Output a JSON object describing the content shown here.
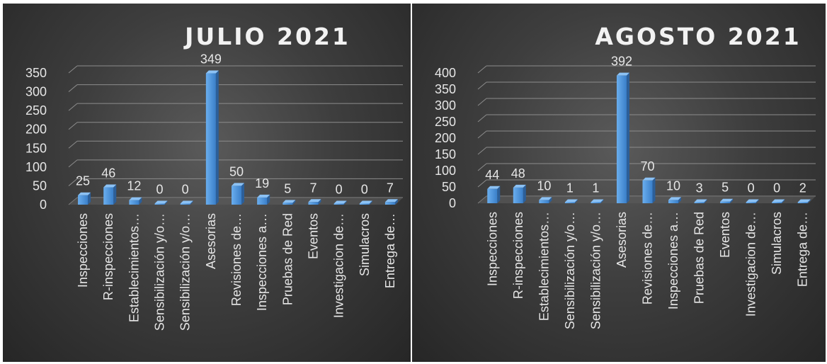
{
  "chart_data": [
    {
      "type": "bar",
      "title": "JULIO 2021",
      "categories": [
        "Inspecciones",
        "R-inspecciones",
        "Establecimientos…",
        "Sensibilización y/o…",
        "Sensibilización y/o…",
        "Asesorias",
        "Revisiones de…",
        "Inspecciones a…",
        "Pruebas de Red",
        "Eventos",
        "Investigacion de…",
        "Simulacros",
        "Entrega de…"
      ],
      "values": [
        25,
        46,
        12,
        0,
        0,
        349,
        50,
        19,
        5,
        7,
        0,
        0,
        7
      ],
      "yticks": [
        0,
        50,
        100,
        150,
        200,
        250,
        300,
        350
      ],
      "ylim": [
        0,
        350
      ],
      "grid": true,
      "legend": "none",
      "bar_color": "#4a90d9"
    },
    {
      "type": "bar",
      "title": "AGOSTO 2021",
      "categories": [
        "Inspecciones",
        "R-inspecciones",
        "Establecimientos…",
        "Sensibilización y/o…",
        "Sensibilización y/o…",
        "Asesorias",
        "Revisiones de…",
        "Inspecciones a…",
        "Pruebas de Red",
        "Eventos",
        "Investigacion de…",
        "Simulacros",
        "Entrega de…"
      ],
      "values": [
        44,
        48,
        10,
        1,
        1,
        392,
        70,
        10,
        3,
        5,
        0,
        0,
        2
      ],
      "yticks": [
        0,
        50,
        100,
        150,
        200,
        250,
        300,
        350,
        400
      ],
      "ylim": [
        0,
        400
      ],
      "grid": true,
      "legend": "none",
      "bar_color": "#4a90d9"
    }
  ]
}
